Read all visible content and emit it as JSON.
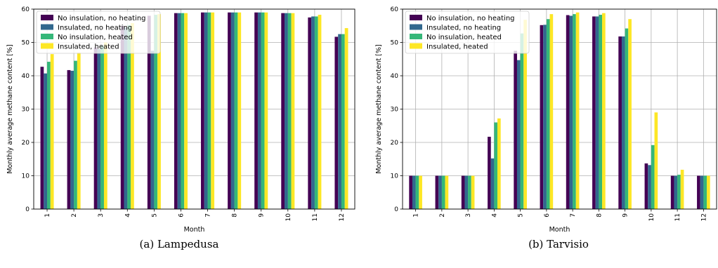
{
  "colors": {
    "series": [
      "#440154",
      "#31688e",
      "#35b779",
      "#fde725"
    ],
    "grid": "#b0b0b0"
  },
  "chart_data": [
    {
      "type": "bar",
      "caption": "(a) Lampedusa",
      "xlabel": "Month",
      "ylabel": "Monthly average methane content [%]",
      "ylim": [
        0,
        60
      ],
      "yticks": [
        0,
        10,
        20,
        30,
        40,
        50,
        60
      ],
      "grid": true,
      "legend": "top-left",
      "categories": [
        "1",
        "2",
        "3",
        "4",
        "5",
        "6",
        "7",
        "8",
        "9",
        "10",
        "11",
        "12"
      ],
      "series": [
        {
          "name": "No insulation, no heating",
          "values": [
            42.7,
            41.7,
            48.5,
            55.0,
            58.0,
            58.8,
            59.0,
            59.0,
            59.0,
            58.8,
            57.5,
            51.7
          ]
        },
        {
          "name": "Insulated, no heating",
          "values": [
            40.7,
            41.5,
            48.0,
            54.5,
            47.5,
            58.8,
            59.0,
            59.0,
            59.0,
            58.8,
            57.8,
            52.5
          ]
        },
        {
          "name": "No insulation, heated",
          "values": [
            44.2,
            44.5,
            49.0,
            55.2,
            58.3,
            58.8,
            59.0,
            59.0,
            59.0,
            58.8,
            57.8,
            52.5
          ]
        },
        {
          "name": "Insulated, heated",
          "values": [
            46.5,
            47.0,
            50.0,
            55.8,
            58.5,
            58.8,
            59.0,
            59.0,
            59.0,
            58.8,
            58.3,
            54.3
          ]
        }
      ]
    },
    {
      "type": "bar",
      "caption": "(b) Tarvisio",
      "xlabel": "Month",
      "ylabel": "Monthly average methane content [%]",
      "ylim": [
        0,
        60
      ],
      "yticks": [
        0,
        10,
        20,
        30,
        40,
        50,
        60
      ],
      "grid": true,
      "legend": "top-left",
      "categories": [
        "1",
        "2",
        "3",
        "4",
        "5",
        "6",
        "7",
        "8",
        "9",
        "10",
        "11",
        "12"
      ],
      "series": [
        {
          "name": "No insulation, no heating",
          "values": [
            10.0,
            10.0,
            10.0,
            21.7,
            47.5,
            55.2,
            58.2,
            57.8,
            51.8,
            13.7,
            10.0,
            10.0
          ]
        },
        {
          "name": "Insulated, no heating",
          "values": [
            10.0,
            10.0,
            10.0,
            15.2,
            44.7,
            55.3,
            58.0,
            57.8,
            51.8,
            13.2,
            10.0,
            10.0
          ]
        },
        {
          "name": "No insulation, heated",
          "values": [
            10.0,
            10.0,
            10.0,
            26.0,
            52.7,
            57.0,
            58.5,
            58.3,
            54.2,
            19.2,
            10.3,
            10.0
          ]
        },
        {
          "name": "Insulated, heated",
          "values": [
            10.0,
            10.0,
            10.0,
            27.2,
            56.8,
            58.5,
            59.0,
            58.8,
            57.0,
            29.0,
            11.8,
            10.0
          ]
        }
      ]
    }
  ]
}
